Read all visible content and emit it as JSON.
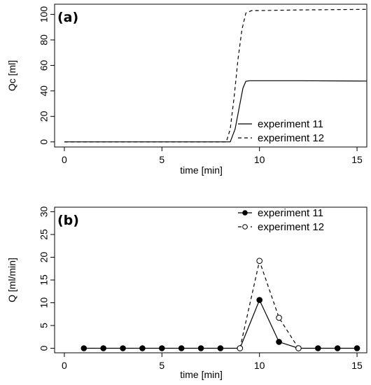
{
  "chart_data": [
    {
      "type": "line",
      "panel_label": "(a)",
      "xlabel": "time [min]",
      "ylabel": "Qc [ml]",
      "xlim": [
        -0.5,
        15.5
      ],
      "ylim": [
        -4,
        108
      ],
      "xticks": [
        0,
        5,
        10,
        15
      ],
      "yticks": [
        0,
        20,
        40,
        60,
        80,
        100
      ],
      "grid": false,
      "legend_position": "bottom-right",
      "series": [
        {
          "name": "experiment 11",
          "line_style": "solid",
          "color": "#000000",
          "x": [
            0,
            8.5,
            8.75,
            9.0,
            9.15,
            9.3,
            9.5,
            10,
            12,
            15.5
          ],
          "y": [
            0,
            0,
            10,
            30,
            42,
            47.5,
            48,
            48,
            48,
            47.7
          ]
        },
        {
          "name": "experiment 12",
          "line_style": "dashed",
          "color": "#000000",
          "x": [
            0,
            8.3,
            8.5,
            8.7,
            8.9,
            9.1,
            9.3,
            9.6,
            10,
            12,
            15.5
          ],
          "y": [
            0,
            0,
            10,
            35,
            65,
            88,
            101,
            103,
            103,
            103.5,
            104
          ]
        }
      ]
    },
    {
      "type": "line",
      "panel_label": "(b)",
      "xlabel": "time [min]",
      "ylabel": "Q [ml/min]",
      "xlim": [
        -0.5,
        15.5
      ],
      "ylim": [
        -1,
        31
      ],
      "xticks": [
        0,
        5,
        10,
        15
      ],
      "yticks": [
        0,
        5,
        10,
        15,
        20,
        25,
        30
      ],
      "grid": false,
      "legend_position": "top-right",
      "series": [
        {
          "name": "experiment 11",
          "line_style": "solid",
          "marker": "filled-circle",
          "color": "#000000",
          "x": [
            1,
            2,
            3,
            4,
            5,
            6,
            7,
            8,
            9,
            10,
            11,
            12,
            13,
            14,
            15
          ],
          "y": [
            0,
            0,
            0,
            0,
            0,
            0,
            0,
            0,
            0,
            10.6,
            1.4,
            0,
            0,
            0,
            0
          ]
        },
        {
          "name": "experiment 12",
          "line_style": "dashed",
          "marker": "open-circle",
          "color": "#000000",
          "x": [
            9,
            10,
            11,
            12
          ],
          "y": [
            0,
            19.2,
            6.7,
            0
          ]
        }
      ]
    }
  ]
}
